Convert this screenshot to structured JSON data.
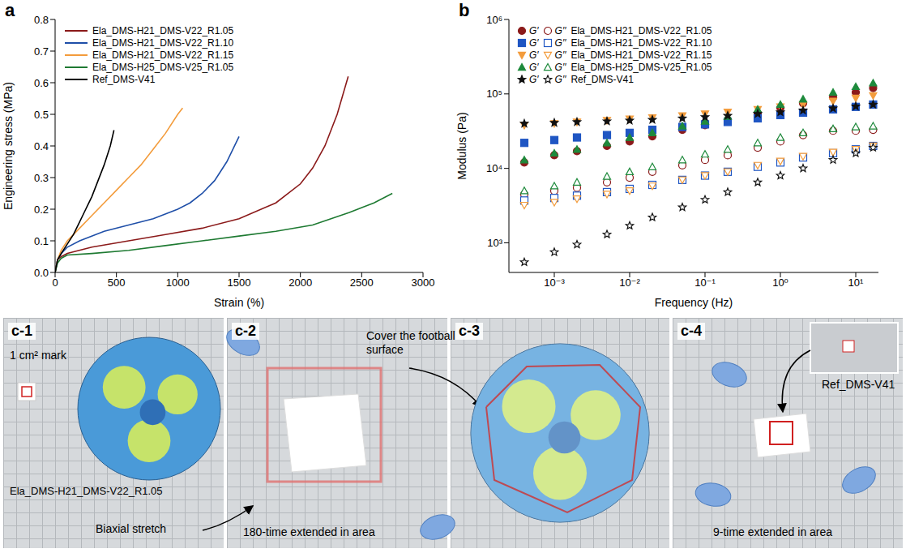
{
  "chart_data": [
    {
      "panel": "a",
      "type": "line",
      "x_label": "Strain (%)",
      "y_label": "Engineering stress (MPa)",
      "xlim": [
        0,
        3000
      ],
      "xticks": [
        0,
        500,
        1000,
        1500,
        2000,
        2500,
        3000
      ],
      "ylim": [
        0,
        0.8
      ],
      "yticks": [
        {
          "value": 0,
          "label": "0.0"
        },
        0.1,
        0.2,
        0.3,
        0.4,
        0.5,
        0.6,
        0.7,
        0.8
      ],
      "legend": "upper left",
      "series": [
        {
          "name": "Ela_DMS-H21_DMS-V22_R1.05",
          "color": "#8b1a1a",
          "x": [
            0,
            20,
            50,
            100,
            300,
            600,
            900,
            1200,
            1500,
            1800,
            2000,
            2100,
            2200,
            2300,
            2390
          ],
          "values": [
            0,
            0.04,
            0.05,
            0.06,
            0.08,
            0.1,
            0.12,
            0.14,
            0.17,
            0.22,
            0.28,
            0.33,
            0.4,
            0.5,
            0.62
          ]
        },
        {
          "name": "Ela_DMS-H21_DMS-V22_R1.10",
          "color": "#1f4fa8",
          "x": [
            0,
            20,
            50,
            100,
            200,
            400,
            600,
            800,
            1000,
            1100,
            1200,
            1300,
            1400,
            1500
          ],
          "values": [
            0,
            0.04,
            0.06,
            0.08,
            0.1,
            0.13,
            0.15,
            0.17,
            0.2,
            0.22,
            0.25,
            0.29,
            0.35,
            0.43
          ]
        },
        {
          "name": "Ela_DMS-H21_DMS-V22_R1.15",
          "color": "#f39c3c",
          "x": [
            0,
            20,
            50,
            100,
            200,
            300,
            400,
            500,
            600,
            700,
            800,
            900,
            1000,
            1040
          ],
          "values": [
            0,
            0.04,
            0.07,
            0.1,
            0.14,
            0.18,
            0.22,
            0.26,
            0.3,
            0.34,
            0.39,
            0.44,
            0.5,
            0.52
          ]
        },
        {
          "name": "Ela_DMS-H25_DMS-V25_R1.05",
          "color": "#1e7a32",
          "x": [
            0,
            20,
            50,
            100,
            300,
            600,
            900,
            1200,
            1500,
            1800,
            2100,
            2400,
            2600,
            2750
          ],
          "values": [
            0,
            0.03,
            0.045,
            0.055,
            0.06,
            0.07,
            0.085,
            0.1,
            0.115,
            0.13,
            0.15,
            0.19,
            0.22,
            0.25
          ]
        },
        {
          "name": "Ref_DMS-V41",
          "color": "#000000",
          "x": [
            0,
            20,
            50,
            100,
            150,
            200,
            250,
            300,
            350,
            400,
            450,
            480
          ],
          "values": [
            0,
            0.04,
            0.06,
            0.09,
            0.12,
            0.16,
            0.2,
            0.24,
            0.29,
            0.34,
            0.4,
            0.45
          ]
        }
      ]
    },
    {
      "panel": "b",
      "type": "scatter",
      "log": true,
      "x_label": "Frequency (Hz)",
      "y_label": "Modulus (Pa)",
      "xlim": [
        0.00025,
        20
      ],
      "xticks": [
        {
          "value": 0.001,
          "label": "10⁻³"
        },
        {
          "value": 0.01,
          "label": "10⁻²"
        },
        {
          "value": 0.1,
          "label": "10⁻¹"
        },
        {
          "value": 1,
          "label": "10⁰"
        },
        {
          "value": 10,
          "label": "10¹"
        }
      ],
      "ylim": [
        400,
        1000000
      ],
      "yticks": [
        {
          "value": 1000,
          "label": "10³"
        },
        {
          "value": 10000,
          "label": "10⁴"
        },
        {
          "value": 100000,
          "label": "10⁵"
        },
        {
          "value": 1000000,
          "label": "10⁶"
        }
      ],
      "legend": "upper left",
      "legend_labels": [
        "G′",
        "G′′"
      ],
      "x": [
        0.0004,
        0.001,
        0.002,
        0.005,
        0.01,
        0.02,
        0.05,
        0.1,
        0.2,
        0.5,
        1,
        2,
        5,
        10,
        17
      ],
      "series": [
        {
          "name": "Ela_DMS-H21_DMS-V22_R1.05",
          "color": "#8b1a1a",
          "marker": "circle",
          "G_storage": [
            12000,
            15000,
            17000,
            20000,
            23000,
            27000,
            33000,
            38000,
            45000,
            55000,
            65000,
            75000,
            90000,
            105000,
            120000
          ],
          "G_loss": [
            4500,
            5000,
            5500,
            6500,
            7500,
            9000,
            11000,
            13000,
            15000,
            19000,
            23000,
            28000,
            32000,
            32000,
            33000
          ]
        },
        {
          "name": "Ela_DMS-H21_DMS-V22_R1.10",
          "color": "#1f56c3",
          "marker": "square",
          "G_storage": [
            22000,
            24000,
            26000,
            28000,
            30000,
            33000,
            36000,
            39000,
            42000,
            47000,
            52000,
            56000,
            62000,
            67000,
            72000
          ],
          "G_loss": [
            3700,
            4000,
            4300,
            4800,
            5300,
            6000,
            7000,
            8000,
            9000,
            10500,
            12000,
            14000,
            16000,
            18000,
            20000
          ]
        },
        {
          "name": "Ela_DMS-H21_DMS-V22_R1.15",
          "color": "#f39c3c",
          "marker": "triangle-down",
          "G_storage": [
            38000,
            40000,
            42000,
            44000,
            46000,
            48000,
            51000,
            54000,
            57000,
            62000,
            67000,
            72000,
            80000,
            88000,
            95000
          ],
          "G_loss": [
            3200,
            3500,
            3900,
            4500,
            5000,
            5800,
            7000,
            8000,
            9000,
            11000,
            12500,
            14500,
            16500,
            18000,
            20000
          ]
        },
        {
          "name": "Ela_DMS-H25_DMS-V25_R1.05",
          "color": "#1e8a3c",
          "marker": "triangle",
          "G_storage": [
            13000,
            16000,
            18000,
            22000,
            26000,
            30000,
            37000,
            43000,
            50000,
            62000,
            72000,
            85000,
            105000,
            125000,
            140000
          ],
          "G_loss": [
            5000,
            5800,
            6500,
            7800,
            9000,
            10500,
            13000,
            15500,
            18000,
            22000,
            26000,
            30000,
            34000,
            36000,
            37000
          ]
        },
        {
          "name": "Ref_DMS-V41",
          "color": "#111111",
          "marker": "star",
          "G_storage": [
            40000,
            41000,
            42000,
            43000,
            44000,
            45000,
            47000,
            49000,
            51000,
            54000,
            57000,
            60000,
            64000,
            68000,
            72000
          ],
          "G_loss": [
            550,
            750,
            950,
            1300,
            1700,
            2200,
            3000,
            3800,
            4800,
            6500,
            8000,
            10000,
            13000,
            16000,
            19000
          ]
        }
      ]
    }
  ],
  "panel_c": {
    "c1": {
      "label": "c-1",
      "mark_text": "1 cm² mark",
      "sample": "Ela_DMS-H21_DMS-V22_R1.05"
    },
    "stretch_text": "Biaxial stretch",
    "c2": {
      "label": "c-2",
      "caption": "180-time extended in area"
    },
    "cover_text": "Cover the football surface",
    "c3": {
      "label": "c-3"
    },
    "c4": {
      "label": "c-4",
      "caption": "9-time extended in area",
      "inset": "Ref_DMS-V41"
    }
  }
}
